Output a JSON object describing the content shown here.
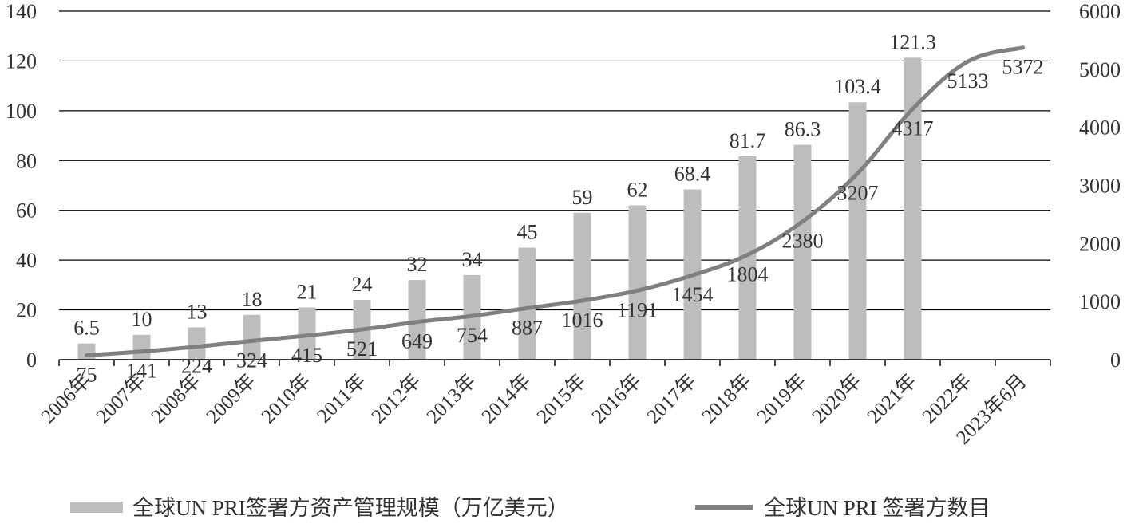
{
  "chart_data": {
    "type": "bar+line",
    "categories": [
      "2006年",
      "2007年",
      "2008年",
      "2009年",
      "2010年",
      "2011年",
      "2012年",
      "2013年",
      "2014年",
      "2015年",
      "2016年",
      "2017年",
      "2018年",
      "2019年",
      "2020年",
      "2021年",
      "2022年",
      "2023年6月"
    ],
    "series": [
      {
        "name": "全球UN PRI签署方资产管理规模（万亿美元）",
        "type": "bar",
        "axis": "left",
        "color": "#bdbdbd",
        "values": [
          6.5,
          10,
          13,
          18,
          21,
          24,
          32,
          34,
          45,
          59,
          62,
          68.4,
          81.7,
          86.3,
          103.4,
          121.3,
          null,
          null
        ],
        "labels": [
          "6.5",
          "10",
          "13",
          "18",
          "21",
          "24",
          "32",
          "34",
          "45",
          "59",
          "62",
          "68.4",
          "81.7",
          "86.3",
          "103.4",
          "121.3",
          "",
          ""
        ]
      },
      {
        "name": "全球UN PRI 签署方数目",
        "type": "line",
        "axis": "right",
        "color": "#808080",
        "values": [
          75,
          141,
          224,
          324,
          415,
          521,
          649,
          754,
          887,
          1016,
          1191,
          1454,
          1804,
          2380,
          3207,
          4317,
          5133,
          5372
        ],
        "labels": [
          "75",
          "141",
          "224",
          "324",
          "415",
          "521",
          "649",
          "754",
          "887",
          "1016",
          "1191",
          "1454",
          "1804",
          "2380",
          "3207",
          "4317",
          "5133",
          "5372"
        ]
      }
    ],
    "y_left": {
      "min": 0,
      "max": 140,
      "ticks": [
        "0",
        "20",
        "40",
        "60",
        "80",
        "100",
        "120",
        "140"
      ]
    },
    "y_right": {
      "min": 0,
      "max": 6000,
      "ticks": [
        "0",
        "1000",
        "2000",
        "3000",
        "4000",
        "5000",
        "6000"
      ]
    },
    "grid": true,
    "legend": "bottom",
    "title": "",
    "xlabel": "",
    "ylabel": ""
  }
}
